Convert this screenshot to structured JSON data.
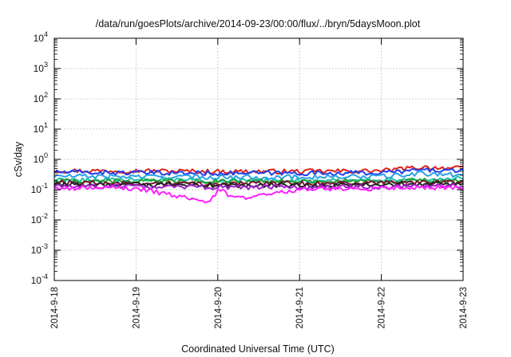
{
  "chart_data": {
    "type": "line",
    "title": "/data/run/goesPlots/archive/2014-09-23/00:00/flux/../bryn/5daysMoon.plot",
    "xlabel": "Coordinated Universal Time (UTC)",
    "ylabel": "cSv/day",
    "yscale": "log",
    "ylim": [
      0.0001,
      10000
    ],
    "xlim": [
      "2014-09-18",
      "2014-09-23"
    ],
    "x_ticks": [
      "2014-9-18",
      "2014-9-19",
      "2014-9-20",
      "2014-9-21",
      "2014-9-22",
      "2014-9-23"
    ],
    "y_ticks": [
      {
        "base": "10",
        "exp": "4"
      },
      {
        "base": "10",
        "exp": "3"
      },
      {
        "base": "10",
        "exp": "2"
      },
      {
        "base": "10",
        "exp": "1"
      },
      {
        "base": "10",
        "exp": "0"
      },
      {
        "base": "10",
        "exp": "-1"
      },
      {
        "base": "10",
        "exp": "-2"
      },
      {
        "base": "10",
        "exp": "-3"
      },
      {
        "base": "10",
        "exp": "-4"
      }
    ],
    "grid": true,
    "legend": "none",
    "series": [
      {
        "color": "#e0201c",
        "x": [
          "2014-09-18",
          "2014-09-19",
          "2014-09-20",
          "2014-09-21",
          "2014-09-22",
          "2014-09-22T12:00",
          "2014-09-23"
        ],
        "values": [
          0.42,
          0.42,
          0.4,
          0.4,
          0.42,
          0.55,
          0.5
        ]
      },
      {
        "color": "#2040e8",
        "x": [
          "2014-09-18",
          "2014-09-19",
          "2014-09-20",
          "2014-09-21",
          "2014-09-22",
          "2014-09-22T12:00",
          "2014-09-23"
        ],
        "values": [
          0.38,
          0.36,
          0.35,
          0.35,
          0.36,
          0.45,
          0.42
        ]
      },
      {
        "color": "#2aa0e8",
        "x": [
          "2014-09-18",
          "2014-09-19",
          "2014-09-20",
          "2014-09-21",
          "2014-09-22",
          "2014-09-22T12:00",
          "2014-09-23"
        ],
        "values": [
          0.28,
          0.27,
          0.26,
          0.26,
          0.27,
          0.34,
          0.3
        ]
      },
      {
        "color": "#20c0b0",
        "x": [
          "2014-09-18",
          "2014-09-19",
          "2014-09-20",
          "2014-09-21",
          "2014-09-22",
          "2014-09-23"
        ],
        "values": [
          0.21,
          0.21,
          0.2,
          0.2,
          0.21,
          0.24
        ]
      },
      {
        "color": "#20a030",
        "x": [
          "2014-09-18",
          "2014-09-19",
          "2014-09-20",
          "2014-09-21",
          "2014-09-22",
          "2014-09-23"
        ],
        "values": [
          0.2,
          0.19,
          0.19,
          0.19,
          0.19,
          0.2
        ]
      },
      {
        "color": "#7a1530",
        "x": [
          "2014-09-18",
          "2014-09-19",
          "2014-09-20",
          "2014-09-21",
          "2014-09-22",
          "2014-09-23"
        ],
        "values": [
          0.17,
          0.165,
          0.16,
          0.16,
          0.165,
          0.18
        ]
      },
      {
        "color": "#222222",
        "x": [
          "2014-09-18",
          "2014-09-19",
          "2014-09-20",
          "2014-09-21",
          "2014-09-22",
          "2014-09-23"
        ],
        "values": [
          0.15,
          0.145,
          0.14,
          0.14,
          0.145,
          0.155
        ]
      },
      {
        "color": "#a020c8",
        "x": [
          "2014-09-18",
          "2014-09-19",
          "2014-09-20",
          "2014-09-21",
          "2014-09-22",
          "2014-09-23"
        ],
        "values": [
          0.13,
          0.125,
          0.12,
          0.12,
          0.125,
          0.135
        ]
      },
      {
        "color": "#ff20ff",
        "x": [
          "2014-09-18",
          "2014-09-19",
          "2014-09-19T22:00",
          "2014-09-20",
          "2014-09-20T04:00",
          "2014-09-20T07:00",
          "2014-09-21",
          "2014-09-22",
          "2014-09-23"
        ],
        "values": [
          0.115,
          0.11,
          0.04,
          0.105,
          0.06,
          0.05,
          0.105,
          0.11,
          0.12
        ]
      }
    ]
  }
}
